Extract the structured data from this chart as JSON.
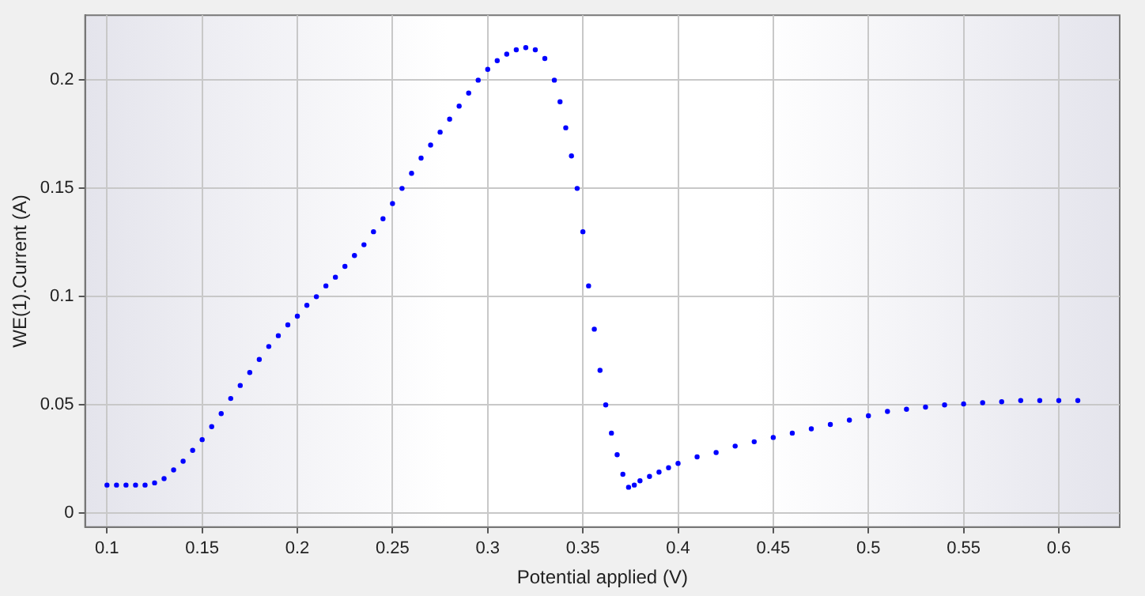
{
  "chart_data": {
    "type": "scatter",
    "xlabel": "Potential applied (V)",
    "ylabel": "WE(1).Current (A)",
    "xlim": [
      0.0885,
      0.632
    ],
    "ylim": [
      -0.0064,
      0.23
    ],
    "xticks": [
      0.1,
      0.15,
      0.2,
      0.25,
      0.3,
      0.35,
      0.4,
      0.45,
      0.5,
      0.55,
      0.6
    ],
    "yticks": [
      0,
      0.05,
      0.1,
      0.15,
      0.2
    ],
    "grid": true,
    "marker": "circle",
    "series": [
      {
        "color": "#0000ff",
        "x": [
          0.1,
          0.105,
          0.11,
          0.115,
          0.12,
          0.125,
          0.13,
          0.135,
          0.14,
          0.145,
          0.15,
          0.155,
          0.16,
          0.165,
          0.17,
          0.175,
          0.18,
          0.185,
          0.19,
          0.195,
          0.2,
          0.205,
          0.21,
          0.215,
          0.22,
          0.225,
          0.23,
          0.235,
          0.24,
          0.245,
          0.25,
          0.255,
          0.26,
          0.265,
          0.27,
          0.275,
          0.28,
          0.285,
          0.29,
          0.295,
          0.3,
          0.305,
          0.31,
          0.315,
          0.32,
          0.325,
          0.33,
          0.335,
          0.338,
          0.341,
          0.344,
          0.347,
          0.35,
          0.353,
          0.356,
          0.359,
          0.362,
          0.365,
          0.368,
          0.371,
          0.374,
          0.377,
          0.38,
          0.385,
          0.39,
          0.395,
          0.4,
          0.41,
          0.42,
          0.43,
          0.44,
          0.45,
          0.46,
          0.47,
          0.48,
          0.49,
          0.5,
          0.51,
          0.52,
          0.53,
          0.54,
          0.55,
          0.56,
          0.57,
          0.58,
          0.59,
          0.6,
          0.61
        ],
        "values": [
          0.013,
          0.013,
          0.013,
          0.013,
          0.013,
          0.014,
          0.016,
          0.02,
          0.024,
          0.029,
          0.034,
          0.04,
          0.046,
          0.053,
          0.059,
          0.065,
          0.071,
          0.077,
          0.082,
          0.087,
          0.091,
          0.096,
          0.1,
          0.105,
          0.109,
          0.114,
          0.119,
          0.124,
          0.13,
          0.136,
          0.143,
          0.15,
          0.157,
          0.164,
          0.17,
          0.176,
          0.182,
          0.188,
          0.194,
          0.2,
          0.205,
          0.209,
          0.212,
          0.214,
          0.215,
          0.214,
          0.21,
          0.2,
          0.19,
          0.178,
          0.165,
          0.15,
          0.13,
          0.105,
          0.085,
          0.066,
          0.05,
          0.037,
          0.027,
          0.018,
          0.012,
          0.013,
          0.015,
          0.017,
          0.019,
          0.021,
          0.023,
          0.026,
          0.028,
          0.031,
          0.033,
          0.035,
          0.037,
          0.039,
          0.041,
          0.043,
          0.045,
          0.047,
          0.048,
          0.049,
          0.05,
          0.0505,
          0.051,
          0.0515,
          0.052,
          0.052,
          0.052,
          0.052
        ]
      }
    ]
  }
}
